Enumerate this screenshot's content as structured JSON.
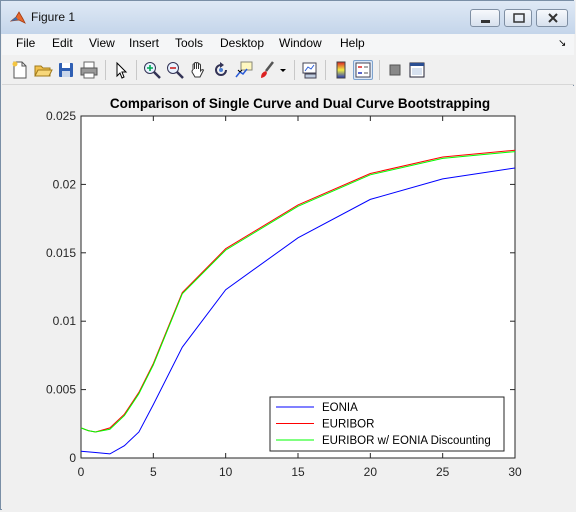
{
  "window": {
    "title": "Figure 1",
    "menu": [
      "File",
      "Edit",
      "View",
      "Insert",
      "Tools",
      "Desktop",
      "Window",
      "Help"
    ]
  },
  "toolbar": {
    "icons": [
      "new-figure-icon",
      "open-icon",
      "save-icon",
      "print-icon",
      "pointer-icon",
      "zoom-in-icon",
      "zoom-out-icon",
      "pan-icon",
      "rotate-icon",
      "data-cursor-icon",
      "brush-icon",
      "brush-dropdown-icon",
      "link-plot-icon",
      "colorbar-icon",
      "legend-icon",
      "hide-tools-icon",
      "show-tools-icon"
    ]
  },
  "chart_data": {
    "type": "line",
    "title": "Comparison of Single Curve and Dual Curve Bootstrapping",
    "xlabel": "",
    "ylabel": "",
    "xlim": [
      0,
      30
    ],
    "ylim": [
      0,
      0.025
    ],
    "xticks": [
      0,
      5,
      10,
      15,
      20,
      25,
      30
    ],
    "yticks": [
      0,
      0.005,
      0.01,
      0.015,
      0.02,
      0.025
    ],
    "xtick_labels": [
      "0",
      "5",
      "10",
      "15",
      "20",
      "25",
      "30"
    ],
    "ytick_labels": [
      "0",
      "0.005",
      "0.01",
      "0.015",
      "0.02",
      "0.025"
    ],
    "grid": false,
    "legend_position": "bottom-right",
    "series": [
      {
        "name": "EONIA",
        "color": "#0000ff",
        "x": [
          0,
          1,
          2,
          3,
          4,
          5,
          7,
          10,
          15,
          20,
          25,
          30
        ],
        "y": [
          0.0005,
          0.0004,
          0.0003,
          0.0009,
          0.0019,
          0.0039,
          0.0081,
          0.0123,
          0.0161,
          0.0189,
          0.0204,
          0.0212
        ]
      },
      {
        "name": "EURIBOR",
        "color": "#ff0000",
        "x": [
          0,
          0.5,
          1,
          2,
          3,
          4,
          5,
          7,
          10,
          15,
          20,
          25,
          30
        ],
        "y": [
          0.0022,
          0.002,
          0.0019,
          0.0022,
          0.0032,
          0.0048,
          0.0069,
          0.0121,
          0.0153,
          0.0185,
          0.0208,
          0.022,
          0.0225
        ]
      },
      {
        "name": "EURIBOR w/ EONIA Discounting",
        "color": "#00ff00",
        "x": [
          0,
          0.5,
          1,
          2,
          3,
          4,
          5,
          7,
          10,
          15,
          20,
          25,
          30
        ],
        "y": [
          0.0022,
          0.002,
          0.0019,
          0.0021,
          0.0031,
          0.0047,
          0.0068,
          0.012,
          0.0152,
          0.0184,
          0.0207,
          0.0219,
          0.0224
        ]
      }
    ]
  }
}
